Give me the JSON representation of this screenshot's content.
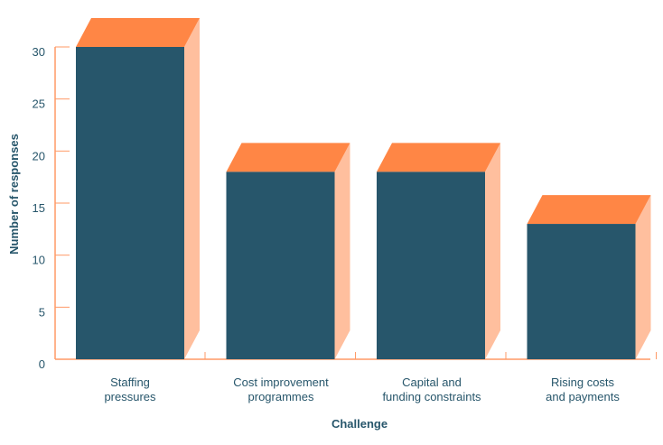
{
  "chart_data": {
    "type": "bar",
    "categories": [
      [
        "Staffing",
        "pressures"
      ],
      [
        "Cost improvement",
        "programmes"
      ],
      [
        "Capital and",
        "funding constraints"
      ],
      [
        "Rising costs",
        "and payments"
      ]
    ],
    "values": [
      30,
      18,
      18,
      13
    ],
    "xlabel": "Challenge",
    "ylabel": "Number of responses",
    "ylim": [
      0,
      30
    ],
    "yticks": [
      0,
      5,
      10,
      15,
      20,
      25,
      30
    ],
    "grid": false,
    "style": "3d-bar",
    "colors": {
      "front": "#27566b",
      "top": "#ff8645",
      "side": "#ffbf9e",
      "axis": "#ff9a66",
      "text": "#27566b"
    }
  }
}
